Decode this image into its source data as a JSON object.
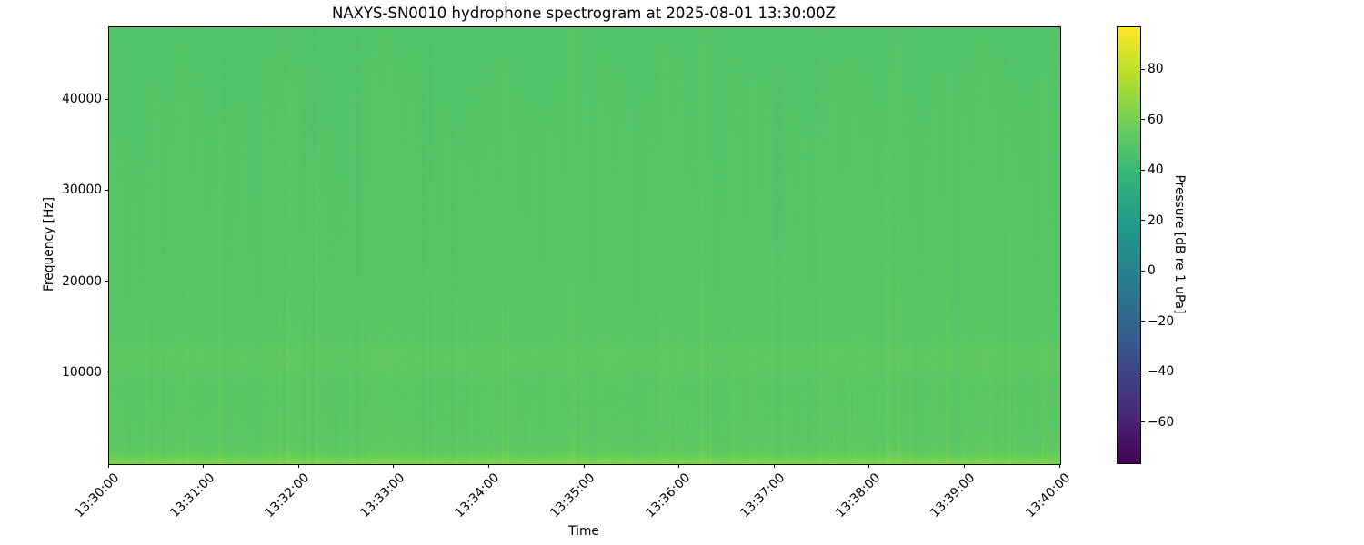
{
  "figure": {
    "background": "#ffffff",
    "spine_color": "#000000"
  },
  "chart_data": {
    "type": "heatmap",
    "subtype": "spectrogram",
    "title": "NAXYS-SN0010 hydrophone spectrogram at 2025-08-01 13:30:00Z",
    "xlabel": "Time",
    "ylabel": "Frequency [Hz]",
    "x_tick_labels": [
      "13:30:00",
      "13:31:00",
      "13:32:00",
      "13:33:00",
      "13:34:00",
      "13:35:00",
      "13:36:00",
      "13:37:00",
      "13:38:00",
      "13:39:00",
      "13:40:00"
    ],
    "x_range_seconds": 600,
    "y_ticks": [
      10000,
      20000,
      30000,
      40000
    ],
    "ylim": [
      0,
      48000
    ],
    "grid": false,
    "colorbar": {
      "label": "Pressure [dB re 1 uPa]",
      "ticks": [
        80,
        60,
        40,
        20,
        0,
        -20,
        -40,
        -60
      ],
      "vmin": -76,
      "vmax": 97,
      "colormap": "viridis",
      "colormap_stops": [
        "#440154",
        "#482878",
        "#3e4989",
        "#31688e",
        "#26828e",
        "#1f9e89",
        "#35b779",
        "#6ece58",
        "#b5de2b",
        "#fde725"
      ]
    },
    "frequency_profile_db": [
      {
        "f": 0,
        "db": 63.0
      },
      {
        "f": 250,
        "db": 61.5
      },
      {
        "f": 700,
        "db": 58.0
      },
      {
        "f": 1200,
        "db": 54.5
      },
      {
        "f": 2500,
        "db": 52.5
      },
      {
        "f": 5000,
        "db": 52.0
      },
      {
        "f": 8500,
        "db": 51.5
      },
      {
        "f": 10500,
        "db": 53.2
      },
      {
        "f": 12500,
        "db": 53.4
      },
      {
        "f": 14000,
        "db": 51.2
      },
      {
        "f": 20000,
        "db": 50.6
      },
      {
        "f": 30000,
        "db": 50.2
      },
      {
        "f": 40000,
        "db": 49.8
      },
      {
        "f": 48000,
        "db": 49.3
      }
    ],
    "texture": {
      "column_noise_db": 1.2,
      "pixel_noise_db": 0.6,
      "spike_probability": 0.025,
      "spike_db": 4.0,
      "seed": 42
    }
  }
}
